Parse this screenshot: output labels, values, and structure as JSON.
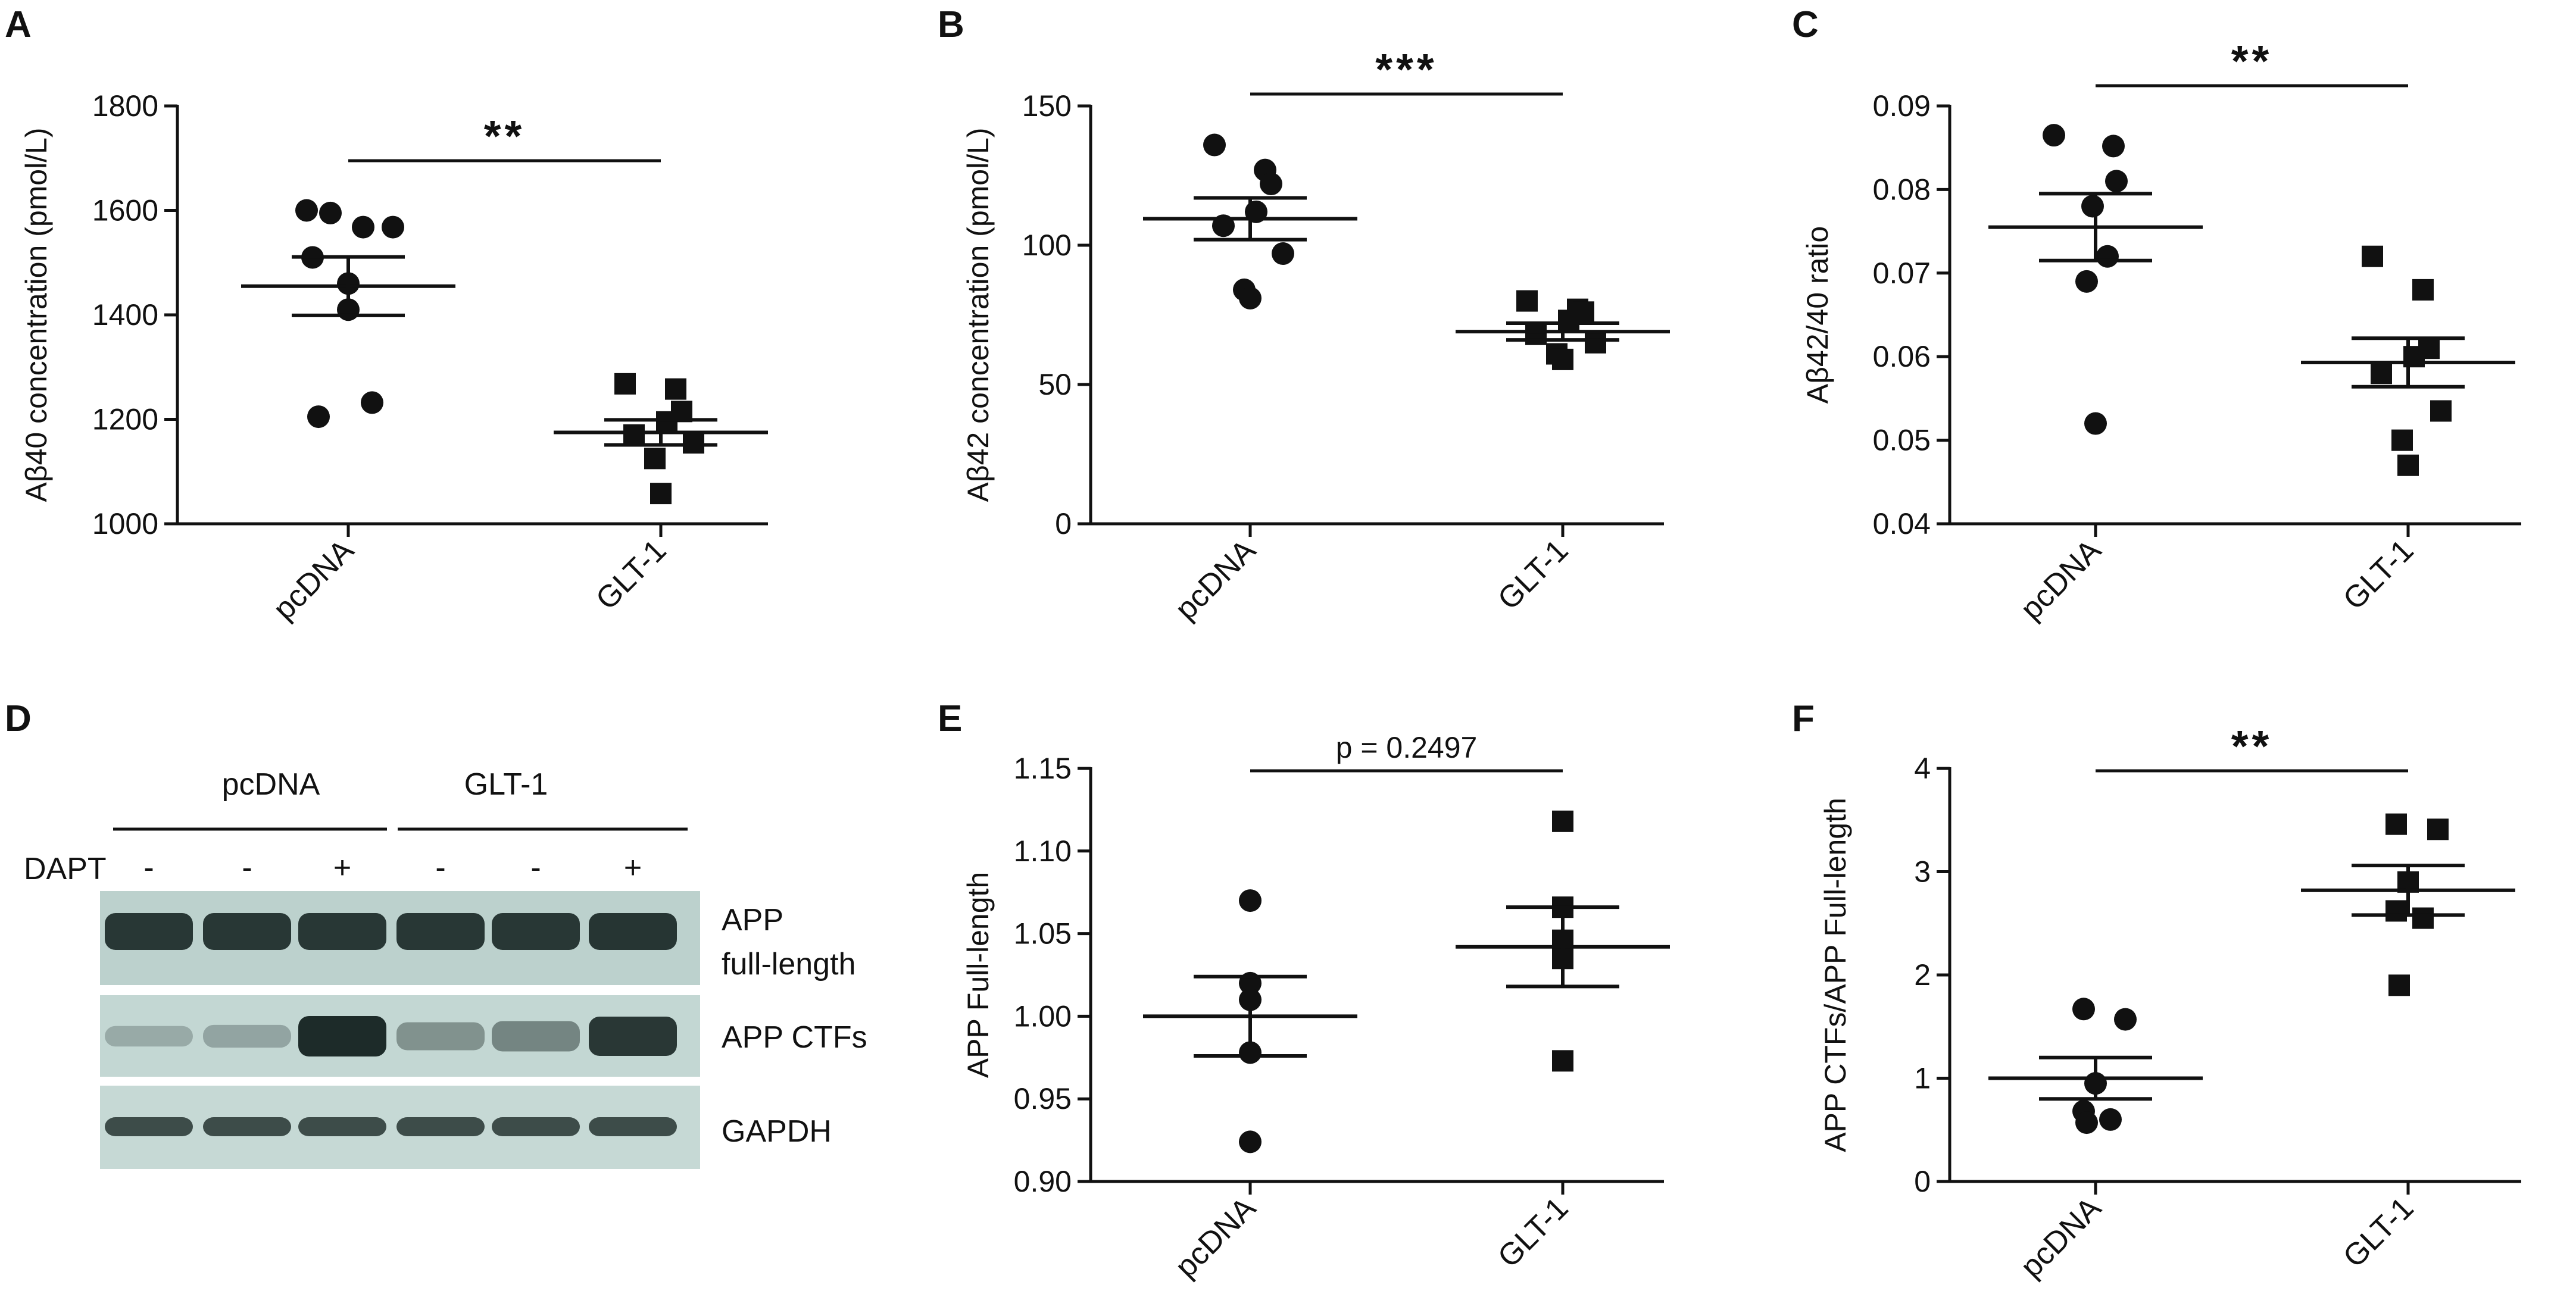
{
  "colors": {
    "ink": "#111111",
    "blot_bg": "#bcd1cd",
    "band": "#1d2b29"
  },
  "panels": {
    "A": "A",
    "B": "B",
    "C": "C",
    "D": "D",
    "E": "E",
    "F": "F"
  },
  "chart_data": [
    {
      "id": "A",
      "type": "scatter",
      "ylabel": "Aβ40 concentration (pmol/L)",
      "ylim": [
        1000,
        1800
      ],
      "yticks": [
        1000,
        1200,
        1400,
        1600,
        1800
      ],
      "yticklabels": [
        "1000",
        "1200",
        "1400",
        "1600",
        "1800"
      ],
      "categories": [
        "pcDNA",
        "GLT-1"
      ],
      "significance": "**",
      "series": [
        {
          "category": "pcDNA",
          "marker": "circle",
          "values": [
            1600,
            1595,
            1568,
            1568,
            1510,
            1460,
            1410,
            1232,
            1205
          ],
          "mean": 1455,
          "sem": 56
        },
        {
          "category": "GLT-1",
          "marker": "square",
          "values": [
            1268,
            1258,
            1215,
            1195,
            1170,
            1155,
            1125,
            1058
          ],
          "mean": 1175,
          "sem": 24
        }
      ]
    },
    {
      "id": "B",
      "type": "scatter",
      "ylabel": "Aβ42 concentration (pmol/L)",
      "ylim": [
        0,
        150
      ],
      "yticks": [
        0,
        50,
        100,
        150
      ],
      "yticklabels": [
        "0",
        "50",
        "100",
        "150"
      ],
      "categories": [
        "pcDNA",
        "GLT-1"
      ],
      "significance": "***",
      "series": [
        {
          "category": "pcDNA",
          "marker": "circle",
          "values": [
            136,
            127,
            122,
            112,
            107,
            97,
            84,
            81
          ],
          "mean": 109.5,
          "sem": 7.5
        },
        {
          "category": "GLT-1",
          "marker": "square",
          "values": [
            80,
            77,
            76,
            73,
            68,
            65,
            61,
            59
          ],
          "mean": 69,
          "sem": 3
        }
      ]
    },
    {
      "id": "C",
      "type": "scatter",
      "ylabel": "Aβ42/40 ratio",
      "ylim": [
        0.04,
        0.09
      ],
      "yticks": [
        0.04,
        0.05,
        0.06,
        0.07,
        0.08,
        0.09
      ],
      "yticklabels": [
        "0.04",
        "0.05",
        "0.06",
        "0.07",
        "0.08",
        "0.09"
      ],
      "categories": [
        "pcDNA",
        "GLT-1"
      ],
      "significance": "**",
      "series": [
        {
          "category": "pcDNA",
          "marker": "circle",
          "values": [
            0.0865,
            0.0852,
            0.081,
            0.078,
            0.072,
            0.069,
            0.052
          ],
          "mean": 0.0755,
          "sem": 0.004
        },
        {
          "category": "GLT-1",
          "marker": "square",
          "values": [
            0.072,
            0.068,
            0.061,
            0.06,
            0.058,
            0.0535,
            0.05,
            0.047
          ],
          "mean": 0.0593,
          "sem": 0.0029
        }
      ]
    },
    {
      "id": "E",
      "type": "scatter",
      "ylabel": "APP Full-length",
      "ylim": [
        0.9,
        1.15
      ],
      "yticks": [
        0.9,
        0.95,
        1.0,
        1.05,
        1.1,
        1.15
      ],
      "yticklabels": [
        "0.90",
        "0.95",
        "1.00",
        "1.05",
        "1.10",
        "1.15"
      ],
      "categories": [
        "pcDNA",
        "GLT-1"
      ],
      "significance": "p = 0.2497",
      "series": [
        {
          "category": "pcDNA",
          "marker": "circle",
          "values": [
            1.07,
            1.02,
            1.01,
            0.978,
            0.924
          ],
          "mean": 1.0,
          "sem": 0.024
        },
        {
          "category": "GLT-1",
          "marker": "square",
          "values": [
            1.118,
            1.066,
            1.046,
            1.035,
            0.973
          ],
          "mean": 1.042,
          "sem": 0.024
        }
      ]
    },
    {
      "id": "F",
      "type": "scatter",
      "ylabel": "APP CTFs/APP Full-length",
      "ylim": [
        0,
        4
      ],
      "yticks": [
        0,
        1,
        2,
        3,
        4
      ],
      "yticklabels": [
        "0",
        "1",
        "2",
        "3",
        "4"
      ],
      "categories": [
        "pcDNA",
        "GLT-1"
      ],
      "significance": "**",
      "series": [
        {
          "category": "pcDNA",
          "marker": "circle",
          "values": [
            1.67,
            1.57,
            0.95,
            0.68,
            0.6,
            0.57
          ],
          "mean": 1.0,
          "sem": 0.2
        },
        {
          "category": "GLT-1",
          "marker": "square",
          "values": [
            3.46,
            3.41,
            2.9,
            2.62,
            2.55,
            1.9
          ],
          "mean": 2.82,
          "sem": 0.24
        }
      ]
    }
  ],
  "blot": {
    "group_labels": [
      "pcDNA",
      "GLT-1"
    ],
    "dapt_label": "DAPT",
    "dapt_signs": [
      "-",
      "-",
      "+",
      "-",
      "-",
      "+"
    ],
    "row_labels": [
      "APP",
      "full-length",
      "APP CTFs",
      "GAPDH"
    ],
    "ctf_intensity": [
      0.12,
      0.22,
      1.0,
      0.45,
      0.55,
      0.95
    ],
    "fl_intensity": [
      0.9,
      0.9,
      0.9,
      0.9,
      0.9,
      0.92
    ],
    "gapdh_intensity": [
      0.75,
      0.75,
      0.75,
      0.75,
      0.75,
      0.75
    ]
  }
}
